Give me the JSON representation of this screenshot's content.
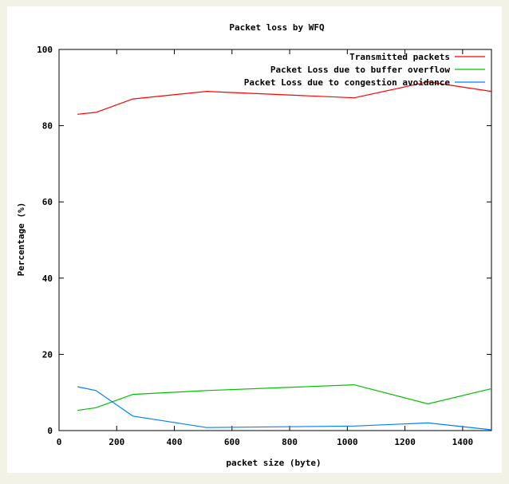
{
  "chart_data": {
    "type": "line",
    "title": "Packet loss by WFQ",
    "xlabel": "packet size (byte)",
    "ylabel": "Percentage (%)",
    "xlim": [
      0,
      1500
    ],
    "ylim": [
      0,
      100
    ],
    "xticks": [
      0,
      200,
      400,
      600,
      800,
      1000,
      1200,
      1400
    ],
    "yticks": [
      0,
      20,
      40,
      60,
      80,
      100
    ],
    "legend_position": "top-right",
    "grid": false,
    "series": [
      {
        "name": "Transmitted packets",
        "color": "#ff0000",
        "x": [
          64,
          128,
          256,
          512,
          1024,
          1280,
          1500
        ],
        "y": [
          83,
          83.5,
          87,
          89,
          87.3,
          91.5,
          89
        ]
      },
      {
        "name": "Packet Loss due to buffer overflow",
        "color": "#00c000",
        "x": [
          64,
          128,
          256,
          512,
          1024,
          1280,
          1500
        ],
        "y": [
          5.3,
          6,
          9.5,
          10.5,
          12,
          7,
          11
        ]
      },
      {
        "name": "Packet Loss due to congestion avoidance",
        "color": "#0080ff",
        "x": [
          64,
          128,
          256,
          512,
          1024,
          1280,
          1500
        ],
        "y": [
          11.5,
          10.5,
          3.8,
          0.8,
          1.2,
          2,
          0.2
        ]
      }
    ]
  }
}
